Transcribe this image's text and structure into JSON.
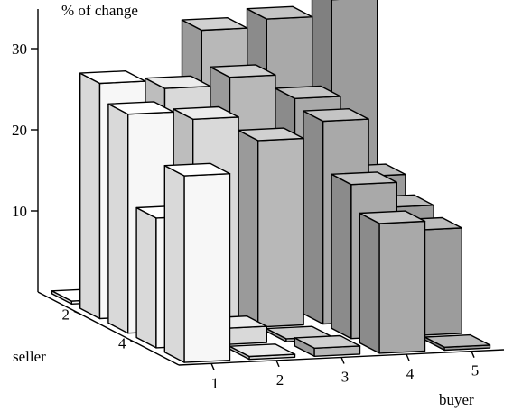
{
  "chart_data": {
    "type": "bar",
    "subtype": "3d-bar",
    "title": "% of change",
    "xlabel": "buyer",
    "ylabel": "seller",
    "zlabel": "% of change",
    "x_ticks": [
      "1",
      "2",
      "3",
      "4",
      "5"
    ],
    "y_ticks": [
      "2",
      "4"
    ],
    "z_ticks": [
      "10",
      "20",
      "30"
    ],
    "zlim": [
      0,
      35
    ],
    "grid": false,
    "sellers": [
      1,
      2,
      3,
      4,
      5
    ],
    "buyers": [
      1,
      2,
      3,
      4,
      5
    ],
    "values": [
      [
        0,
        2,
        33,
        34,
        36
      ],
      [
        29,
        28,
        29,
        26,
        16
      ],
      [
        27,
        26,
        23,
        25,
        14
      ],
      [
        16,
        2,
        0,
        19,
        13
      ],
      [
        23,
        0,
        1,
        16,
        0
      ]
    ],
    "colors": {
      "1": {
        "front": "#f7f7f7",
        "side": "#d9d9d9",
        "top": "#ffffff"
      },
      "2": {
        "front": "#d9d9d9",
        "side": "#bdbdbd",
        "top": "#ececec"
      },
      "3": {
        "front": "#b8b8b8",
        "side": "#9a9a9a",
        "top": "#d0d0d0"
      },
      "4": {
        "front": "#a9a9a9",
        "side": "#8b8b8b",
        "top": "#c4c4c4"
      },
      "5": {
        "front": "#9c9c9c",
        "side": "#808080",
        "top": "#bbbbbb"
      }
    }
  }
}
